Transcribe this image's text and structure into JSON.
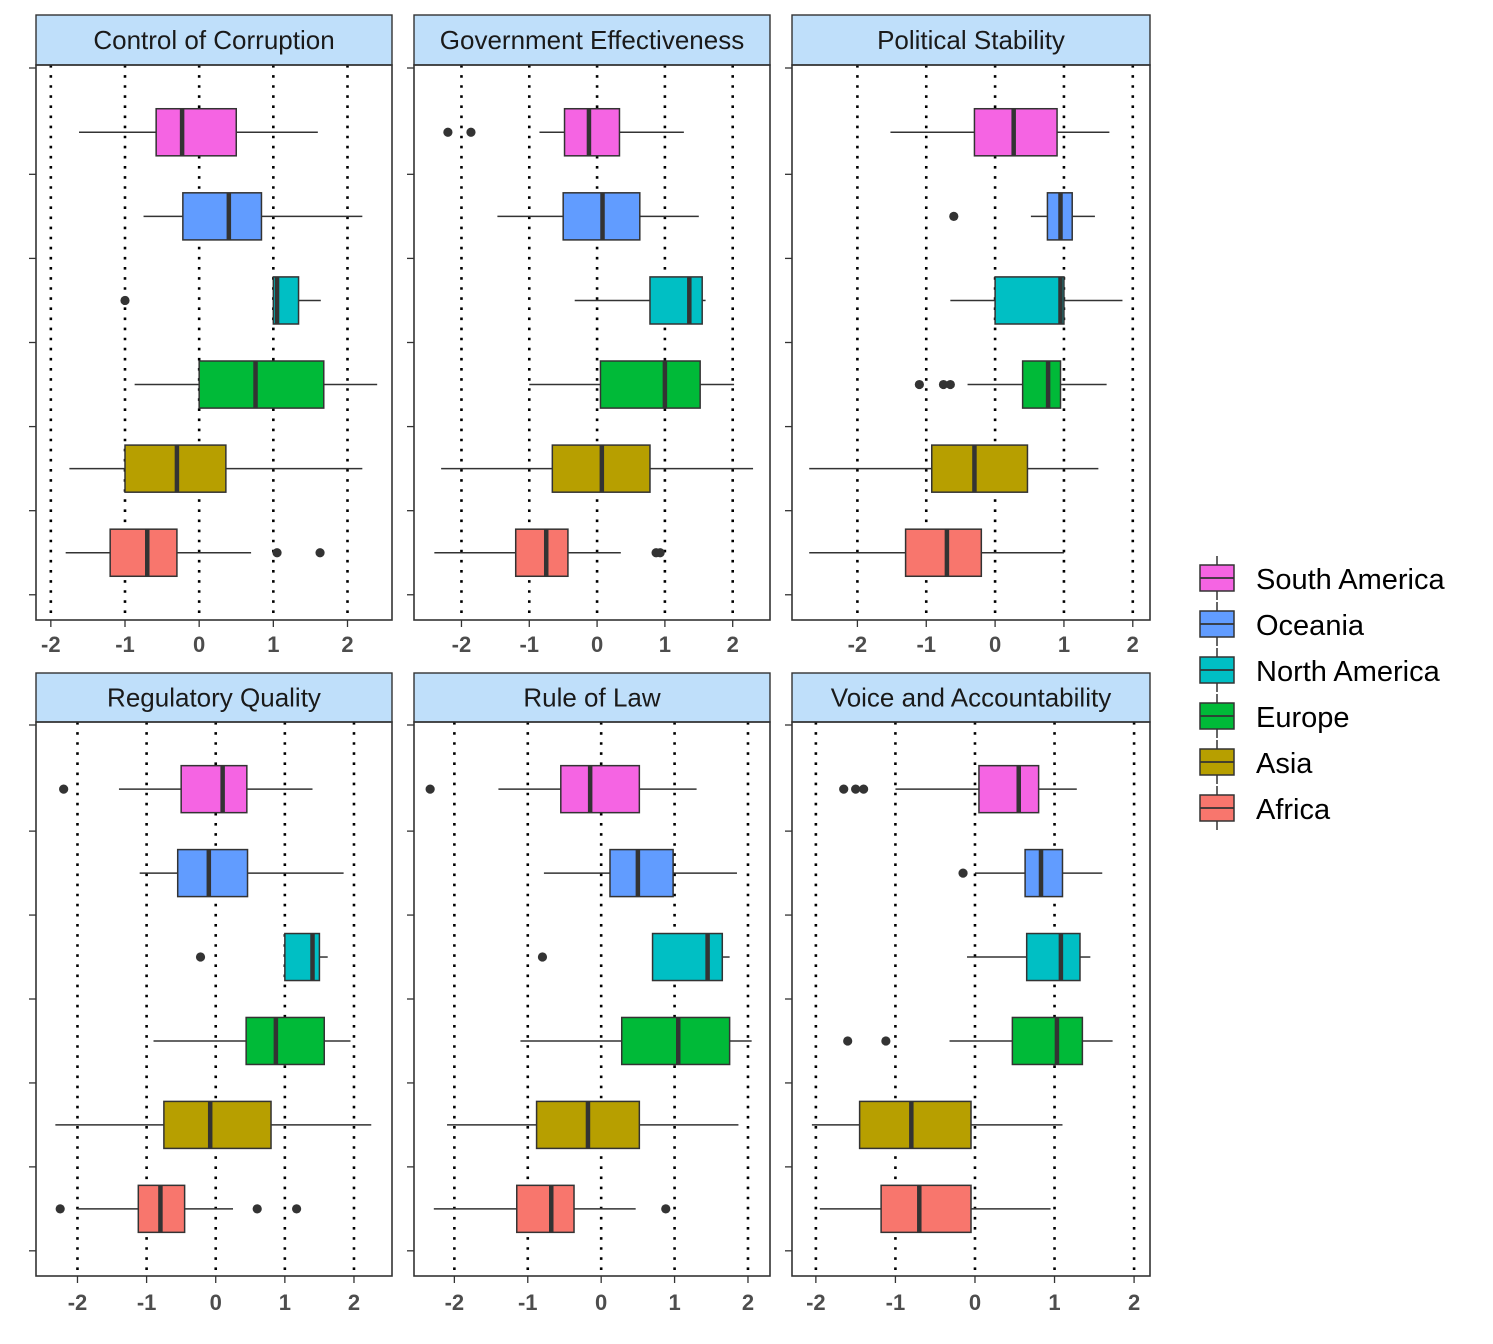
{
  "chart_data": {
    "type": "boxplot",
    "facet_layout": "3 columns x 2 rows",
    "orientation": "horizontal",
    "x_ticks": [
      -2,
      -1,
      0,
      1,
      2
    ],
    "vlines": [
      -2,
      -1,
      0,
      1,
      2
    ],
    "legend_placement": "right",
    "categories": [
      "South America",
      "Oceania",
      "North America",
      "Europe",
      "Asia",
      "Africa"
    ],
    "legend": [
      {
        "name": "South America",
        "color": "#F564E3"
      },
      {
        "name": "Oceania",
        "color": "#619CFF"
      },
      {
        "name": "North America",
        "color": "#00BFC4"
      },
      {
        "name": "Europe",
        "color": "#00BA38"
      },
      {
        "name": "Asia",
        "color": "#B79F00"
      },
      {
        "name": "Africa",
        "color": "#F8766D"
      }
    ],
    "panels": [
      {
        "title": "Control of Corruption",
        "xlim": [
          -2.2,
          2.6
        ],
        "boxes": [
          {
            "group": "South America",
            "whisker_low": -1.62,
            "q1": -0.58,
            "median": -0.23,
            "q3": 0.5,
            "whisker_high": 1.6,
            "outliers": []
          },
          {
            "group": "Oceania",
            "whisker_low": -0.75,
            "q1": -0.22,
            "median": 0.4,
            "q3": 0.84,
            "whisker_high": 2.2,
            "outliers": []
          },
          {
            "group": "North America",
            "whisker_low": 1.0,
            "q1": 1.0,
            "median": 1.05,
            "q3": 1.34,
            "whisker_high": 1.64,
            "outliers": [
              -1.0
            ]
          },
          {
            "group": "Europe",
            "whisker_low": -0.87,
            "q1": 0.0,
            "median": 0.76,
            "q3": 1.68,
            "whisker_high": 2.4,
            "outliers": []
          },
          {
            "group": "Asia",
            "whisker_low": -1.75,
            "q1": -1.0,
            "median": -0.3,
            "q3": 0.36,
            "whisker_high": 2.2,
            "outliers": []
          },
          {
            "group": "Africa",
            "whisker_low": -1.8,
            "q1": -1.2,
            "median": -0.7,
            "q3": -0.3,
            "whisker_high": 0.7,
            "outliers": [
              1.05,
              1.63
            ]
          }
        ]
      },
      {
        "title": "Government Effectiveness",
        "xlim": [
          -2.7,
          2.55
        ],
        "boxes": [
          {
            "group": "South America",
            "whisker_low": -0.85,
            "q1": -0.48,
            "median": -0.12,
            "q3": 0.33,
            "whisker_high": 1.28,
            "outliers": [
              -2.2,
              -1.86
            ]
          },
          {
            "group": "Oceania",
            "whisker_low": -1.47,
            "q1": -0.5,
            "median": 0.08,
            "q3": 0.63,
            "whisker_high": 1.5,
            "outliers": []
          },
          {
            "group": "North America",
            "whisker_low": -0.33,
            "q1": 0.78,
            "median": 1.36,
            "q3": 1.55,
            "whisker_high": 1.6,
            "outliers": []
          },
          {
            "group": "Europe",
            "whisker_low": -1.0,
            "q1": 0.05,
            "median": 1.0,
            "q3": 1.52,
            "whisker_high": 2.02,
            "outliers": []
          },
          {
            "group": "Asia",
            "whisker_low": -2.3,
            "q1": -0.66,
            "median": 0.07,
            "q3": 0.78,
            "whisker_high": 2.3,
            "outliers": []
          },
          {
            "group": "Africa",
            "whisker_low": -2.4,
            "q1": -1.2,
            "median": -0.75,
            "q3": -0.43,
            "whisker_high": 0.35,
            "outliers": [
              0.87,
              0.93
            ]
          }
        ]
      },
      {
        "title": "Political Stability",
        "xlim": [
          -2.95,
          2.25
        ],
        "boxes": [
          {
            "group": "South America",
            "whisker_low": -1.52,
            "q1": -0.3,
            "median": 0.27,
            "q3": 0.9,
            "whisker_high": 1.66,
            "outliers": []
          },
          {
            "group": "Oceania",
            "whisker_low": 0.52,
            "q1": 0.76,
            "median": 0.95,
            "q3": 1.12,
            "whisker_high": 1.45,
            "outliers": [
              -0.6
            ]
          },
          {
            "group": "North America",
            "whisker_low": -0.65,
            "q1": 0.0,
            "median": 0.95,
            "q3": 1.0,
            "whisker_high": 1.85,
            "outliers": []
          },
          {
            "group": "Europe",
            "whisker_low": -0.4,
            "q1": 0.4,
            "median": 0.77,
            "q3": 0.95,
            "whisker_high": 1.62,
            "outliers": [
              -1.1,
              -0.75,
              -0.65
            ]
          },
          {
            "group": "Asia",
            "whisker_low": -2.7,
            "q1": -0.92,
            "median": -0.3,
            "q3": 0.47,
            "whisker_high": 1.5,
            "outliers": []
          },
          {
            "group": "Africa",
            "whisker_low": -2.7,
            "q1": -1.3,
            "median": -0.7,
            "q3": -0.2,
            "whisker_high": 1.0,
            "outliers": []
          }
        ]
      },
      {
        "title": "Regulatory Quality",
        "xlim": [
          -2.6,
          2.55
        ],
        "boxes": [
          {
            "group": "South America",
            "whisker_low": -1.4,
            "q1": -0.5,
            "median": 0.1,
            "q3": 0.45,
            "whisker_high": 1.4,
            "outliers": [
              -2.2
            ]
          },
          {
            "group": "Oceania",
            "whisker_low": -1.1,
            "q1": -0.55,
            "median": -0.1,
            "q3": 0.46,
            "whisker_high": 1.85,
            "outliers": []
          },
          {
            "group": "North America",
            "whisker_low": 1.0,
            "q1": 1.0,
            "median": 1.4,
            "q3": 1.5,
            "whisker_high": 1.62,
            "outliers": [
              -0.22
            ]
          },
          {
            "group": "Europe",
            "whisker_low": -0.9,
            "q1": 0.44,
            "median": 0.87,
            "q3": 1.57,
            "whisker_high": 1.95,
            "outliers": []
          },
          {
            "group": "Asia",
            "whisker_low": -2.32,
            "q1": -0.75,
            "median": -0.08,
            "q3": 0.8,
            "whisker_high": 2.25,
            "outliers": []
          },
          {
            "group": "Africa",
            "whisker_low": -2.0,
            "q1": -1.12,
            "median": -0.8,
            "q3": -0.45,
            "whisker_high": 0.25,
            "outliers": [
              -2.25,
              0.6,
              1.17
            ]
          }
        ]
      },
      {
        "title": "Rule of Law",
        "xlim": [
          -2.55,
          2.3
        ],
        "boxes": [
          {
            "group": "South America",
            "whisker_low": -1.4,
            "q1": -0.55,
            "median": -0.15,
            "q3": 0.52,
            "whisker_high": 1.3,
            "outliers": [
              -2.33
            ]
          },
          {
            "group": "Oceania",
            "whisker_low": -0.78,
            "q1": 0.12,
            "median": 0.5,
            "q3": 0.98,
            "whisker_high": 1.85,
            "outliers": []
          },
          {
            "group": "North America",
            "whisker_low": 0.7,
            "q1": 0.7,
            "median": 1.45,
            "q3": 1.65,
            "whisker_high": 1.75,
            "outliers": [
              -0.8
            ]
          },
          {
            "group": "Europe",
            "whisker_low": -1.1,
            "q1": 0.28,
            "median": 1.05,
            "q3": 1.75,
            "whisker_high": 2.05,
            "outliers": []
          },
          {
            "group": "Asia",
            "whisker_low": -2.1,
            "q1": -0.88,
            "median": -0.18,
            "q3": 0.52,
            "whisker_high": 1.87,
            "outliers": []
          },
          {
            "group": "Africa",
            "whisker_low": -2.28,
            "q1": -1.15,
            "median": -0.68,
            "q3": -0.37,
            "whisker_high": 0.47,
            "outliers": [
              0.88
            ]
          }
        ]
      },
      {
        "title": "Voice and Accountability",
        "xlim": [
          -2.3,
          2.2
        ],
        "boxes": [
          {
            "group": "South America",
            "whisker_low": -1.0,
            "q1": 0.05,
            "median": 0.55,
            "q3": 0.8,
            "whisker_high": 1.28,
            "outliers": [
              -1.65,
              -1.5,
              -1.4
            ]
          },
          {
            "group": "Oceania",
            "whisker_low": 0.0,
            "q1": 0.63,
            "median": 0.83,
            "q3": 1.1,
            "whisker_high": 1.6,
            "outliers": [
              -0.15
            ]
          },
          {
            "group": "North America",
            "whisker_low": -0.1,
            "q1": 0.65,
            "median": 1.08,
            "q3": 1.32,
            "whisker_high": 1.45,
            "outliers": []
          },
          {
            "group": "Europe",
            "whisker_low": -0.32,
            "q1": 0.47,
            "median": 1.03,
            "q3": 1.35,
            "whisker_high": 1.73,
            "outliers": [
              -1.6,
              -1.12
            ]
          },
          {
            "group": "Asia",
            "whisker_low": -2.05,
            "q1": -1.45,
            "median": -0.8,
            "q3": -0.05,
            "whisker_high": 1.1,
            "outliers": []
          },
          {
            "group": "Africa",
            "whisker_low": -1.95,
            "q1": -1.18,
            "median": -0.7,
            "q3": -0.05,
            "whisker_high": 0.95,
            "outliers": []
          }
        ]
      }
    ]
  }
}
